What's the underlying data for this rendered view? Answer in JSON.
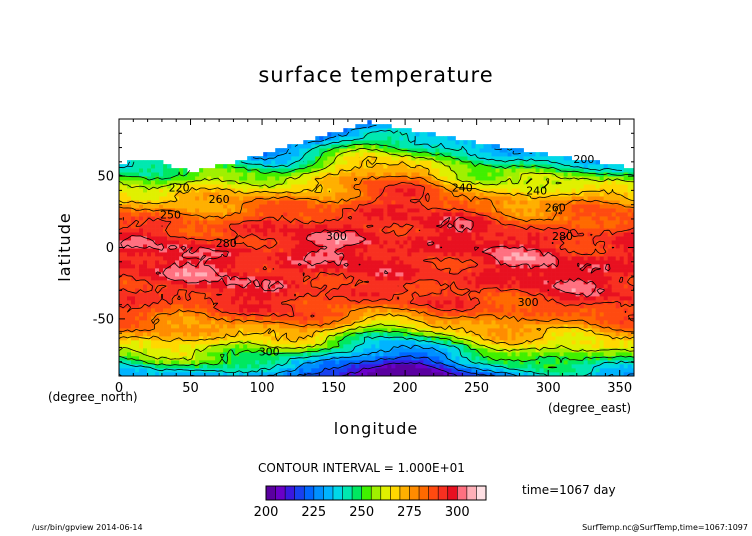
{
  "chart_data": {
    "type": "heatmap",
    "title": "surface temperature",
    "xlabel": "longitude",
    "ylabel": "latitude",
    "x_unit": "(degree_east)",
    "y_unit": "(degree_north)",
    "xlim": [
      0,
      360
    ],
    "ylim": [
      -90,
      90
    ],
    "x_ticks": [
      0,
      50,
      100,
      150,
      200,
      250,
      300,
      350
    ],
    "y_ticks": [
      -50,
      0,
      50
    ],
    "plotted_lat_range": [
      -90,
      88
    ],
    "contour_interval_label": "CONTOUR INTERVAL = 1.000E+01",
    "time_label": "time=1067 day",
    "colorbar": {
      "min": 200,
      "max": 320,
      "step": 5,
      "tick_values": [
        200,
        225,
        250,
        275,
        300
      ],
      "colors": [
        "#5a00a0",
        "#6a00c8",
        "#3a18e0",
        "#1840f0",
        "#0066ff",
        "#0090ff",
        "#00b4ff",
        "#00d8e8",
        "#00e8b0",
        "#00e860",
        "#40f000",
        "#a0f000",
        "#e0f000",
        "#ffd800",
        "#ffb000",
        "#ff8c00",
        "#ff6a00",
        "#ff4a10",
        "#f83020",
        "#e81020",
        "#ff7080",
        "#ffb0b8",
        "#ffe0e4"
      ]
    },
    "contour_labels": [
      {
        "lon": 325,
        "lat": 62,
        "text": "200"
      },
      {
        "lon": 42,
        "lat": 42,
        "text": "220"
      },
      {
        "lon": 240,
        "lat": 42,
        "text": "240"
      },
      {
        "lon": 292,
        "lat": 40,
        "text": "240"
      },
      {
        "lon": 36,
        "lat": 23,
        "text": "250"
      },
      {
        "lon": 70,
        "lat": 34,
        "text": "260"
      },
      {
        "lon": 305,
        "lat": 28,
        "text": "260"
      },
      {
        "lon": 75,
        "lat": 3,
        "text": "280"
      },
      {
        "lon": 310,
        "lat": 8,
        "text": "280"
      },
      {
        "lon": 152,
        "lat": 8,
        "text": "300"
      },
      {
        "lon": 286,
        "lat": -38,
        "text": "300"
      },
      {
        "lon": 105,
        "lat": -73,
        "text": "300"
      }
    ]
  },
  "footer": {
    "left": "/usr/bin/gpview  2014-06-14",
    "right": "SurfTemp.nc@SurfTemp,time=1067:1097"
  }
}
